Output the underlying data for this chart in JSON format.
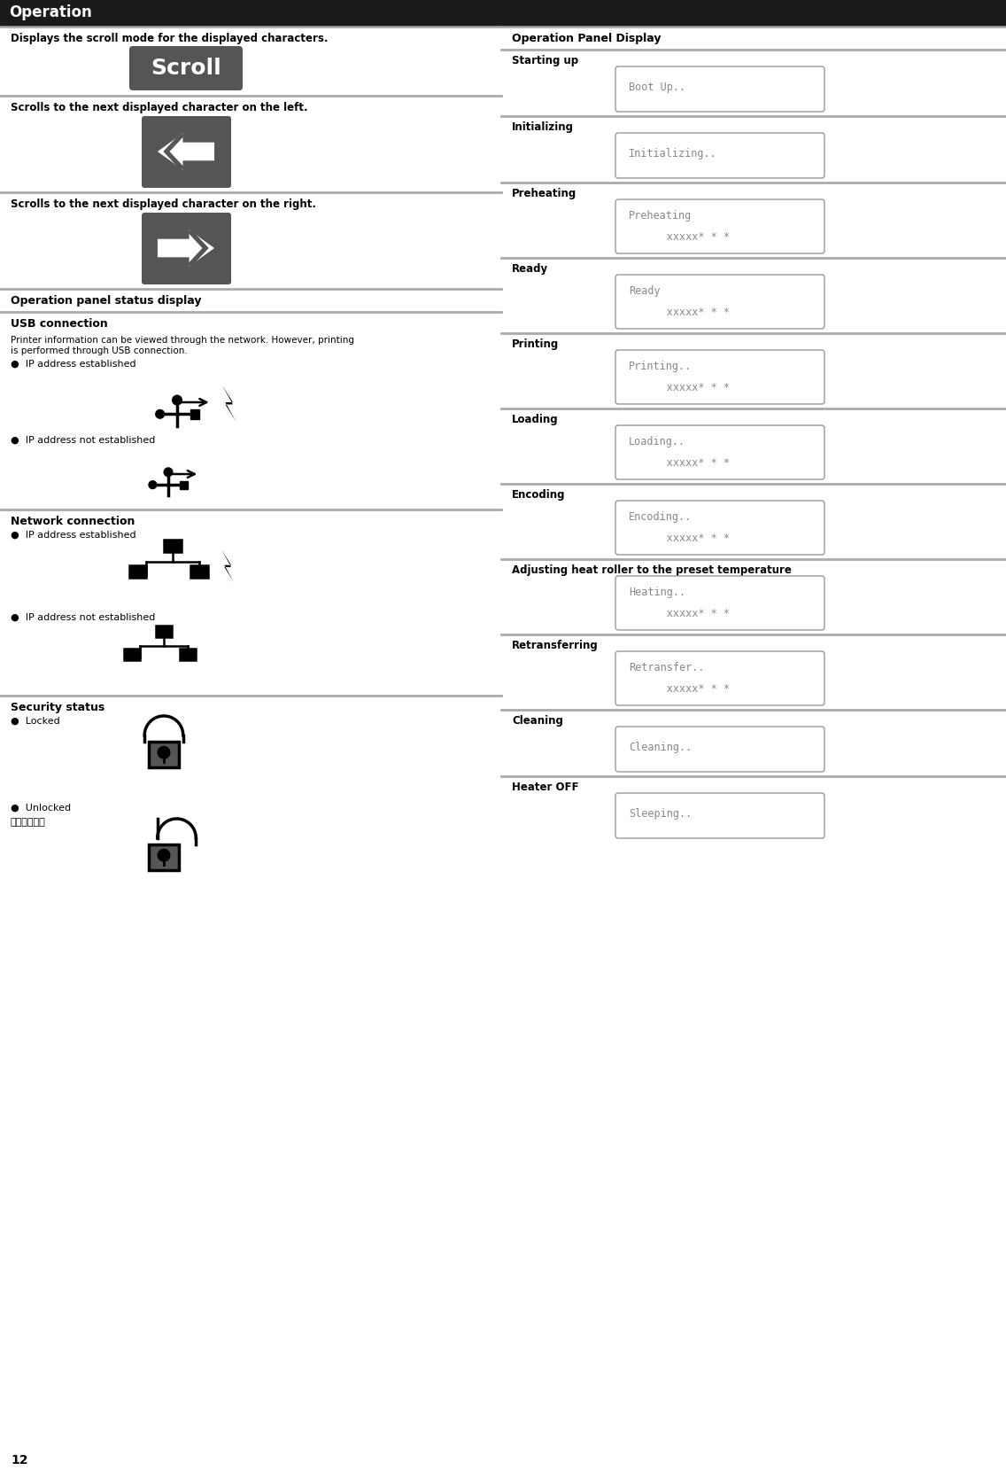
{
  "title": "Operation",
  "page_number": "12",
  "bg_color": "#ffffff",
  "divider_gray": "#aaaaaa",
  "divider_dark": "#1a1a1a",
  "title_bar_color": "#1a1a1a",
  "left_items": [
    {
      "type": "scroll_section",
      "text": "Displays the scroll mode for the displayed characters.",
      "btn": "Scroll"
    },
    {
      "type": "arrow_section",
      "text": "Scrolls to the next displayed character on the left.",
      "dir": "left"
    },
    {
      "type": "arrow_section",
      "text": "Scrolls to the next displayed character on the right.",
      "dir": "right"
    },
    {
      "type": "header",
      "text": "Operation panel status display"
    },
    {
      "type": "usb_section"
    },
    {
      "type": "network_section"
    },
    {
      "type": "security_section"
    }
  ],
  "right_items": [
    {
      "label": "Starting up",
      "lines": [
        "Boot Up.."
      ],
      "two_line": false
    },
    {
      "label": "Initializing",
      "lines": [
        "Initializing.."
      ],
      "two_line": false
    },
    {
      "label": "Preheating",
      "lines": [
        "Preheating",
        "      xxxxx★ ★ ★"
      ],
      "two_line": true
    },
    {
      "label": "Ready",
      "lines": [
        "Ready",
        "      xxxxx★ ★ ★"
      ],
      "two_line": true
    },
    {
      "label": "Printing",
      "lines": [
        "Printing..",
        "      xxxxx★ ★ ★"
      ],
      "two_line": true
    },
    {
      "label": "Loading",
      "lines": [
        "Loading..",
        "      xxxxx★ ★ ★"
      ],
      "two_line": true
    },
    {
      "label": "Encoding",
      "lines": [
        "Encoding..",
        "      xxxxx★ ★ ★"
      ],
      "two_line": true
    },
    {
      "label": "Adjusting heat roller to the preset temperature",
      "lines": [
        "Heating..",
        "      xxxxx★ ★ ★"
      ],
      "two_line": true
    },
    {
      "label": "Retransferring",
      "lines": [
        "Retransfer..",
        "      xxxxx★ ★ ★"
      ],
      "two_line": true
    },
    {
      "label": "Cleaning",
      "lines": [
        "Cleaning.."
      ],
      "two_line": false
    },
    {
      "label": "Heater OFF",
      "lines": [
        "Sleeping.."
      ],
      "two_line": false
    }
  ],
  "display_text_line1": [
    "Boot Up..",
    "Initializing..",
    "Preheating",
    "Ready",
    "Printing..",
    "Loading..",
    "Encoding..",
    "Heating..",
    "Retransfer..",
    "Cleaning..",
    "Sleeping.."
  ],
  "display_text_line2": [
    null,
    null,
    "      xxxxx* * *",
    "      xxxxx* * *",
    "      xxxxx* * *",
    "      xxxxx* * *",
    "      xxxxx* * *",
    "      xxxxx* * *",
    "      xxxxx* * *",
    null,
    null
  ]
}
